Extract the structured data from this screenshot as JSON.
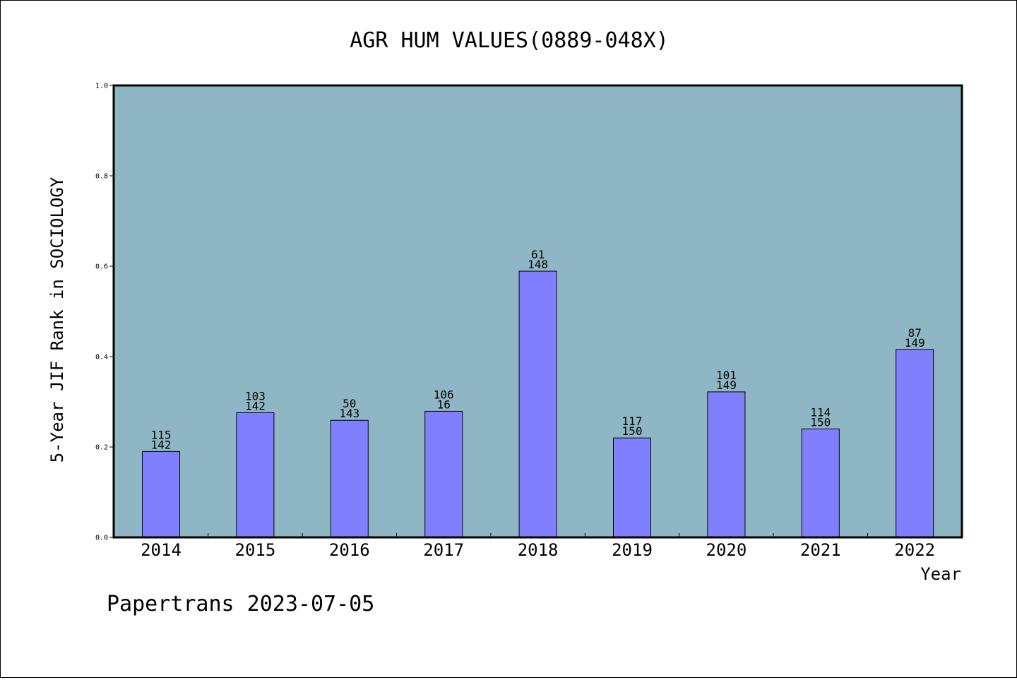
{
  "chart_data": {
    "type": "bar",
    "title": "AGR HUM VALUES(0889-048X)",
    "xlabel": "Year",
    "ylabel": "5-Year JIF Rank in SOCIOLOGY",
    "ylim": [
      0,
      1.0
    ],
    "yticks": [
      "0.0",
      "0.2",
      "0.4",
      "0.6",
      "0.8",
      "1.0"
    ],
    "categories": [
      "2014",
      "2015",
      "2016",
      "2017",
      "2018",
      "2019",
      "2020",
      "2021",
      "2022"
    ],
    "values": [
      0.19,
      0.276,
      0.259,
      0.279,
      0.589,
      0.22,
      0.322,
      0.24,
      0.416
    ],
    "labels_top": [
      "115",
      "103",
      "50",
      "106",
      "61",
      "117",
      "101",
      "114",
      "87"
    ],
    "labels_bottom": [
      "142",
      "142",
      "143",
      "16",
      "148",
      "150",
      "149",
      "150",
      "149"
    ],
    "grid": false,
    "plot_background": "#8fb6c4",
    "bar_color": "#8080ff"
  },
  "footer": "Papertrans 2023-07-05"
}
